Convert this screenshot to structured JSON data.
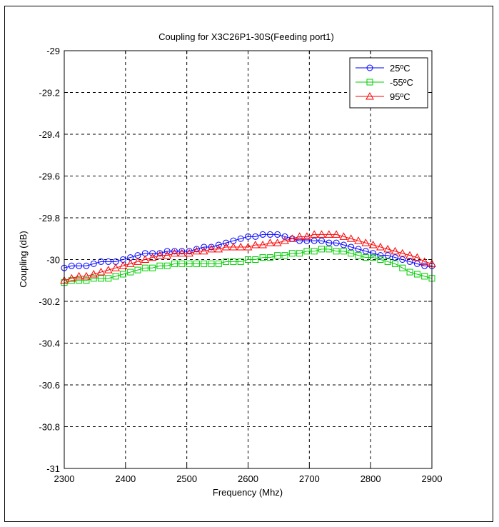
{
  "chart_data": {
    "type": "line",
    "title": "Coupling for X3C26P1-30S(Feeding port1)",
    "xlabel": "Frequency (Mhz)",
    "ylabel": "Coupling (dB)",
    "xlim": [
      2300,
      2900
    ],
    "ylim": [
      -31,
      -29
    ],
    "xticks": [
      2300,
      2400,
      2500,
      2600,
      2700,
      2800,
      2900
    ],
    "yticks": [
      -31,
      -30.8,
      -30.6,
      -30.4,
      -30.2,
      -30,
      -29.8,
      -29.6,
      -29.4,
      -29.2,
      -29
    ],
    "xtick_labels": [
      "2300",
      "2400",
      "2500",
      "2600",
      "2700",
      "2800",
      "2900"
    ],
    "ytick_labels": [
      "-31",
      "-30.8",
      "-30.6",
      "-30.4",
      "-30.2",
      "-30",
      "-29.8",
      "-29.6",
      "-29.4",
      "-29.2",
      "-29"
    ],
    "grid": true,
    "legend_position": "top-right",
    "series": [
      {
        "name": "25ºC",
        "color": "#0000ff",
        "marker": "circle",
        "x": [
          2300,
          2312,
          2324,
          2336,
          2348,
          2360,
          2372,
          2384,
          2396,
          2408,
          2420,
          2432,
          2444,
          2456,
          2468,
          2480,
          2492,
          2504,
          2516,
          2528,
          2540,
          2552,
          2564,
          2576,
          2588,
          2600,
          2612,
          2624,
          2636,
          2648,
          2660,
          2672,
          2684,
          2696,
          2708,
          2720,
          2732,
          2744,
          2756,
          2768,
          2780,
          2792,
          2804,
          2816,
          2828,
          2840,
          2852,
          2864,
          2876,
          2888,
          2900
        ],
        "y": [
          -30.04,
          -30.03,
          -30.03,
          -30.03,
          -30.02,
          -30.01,
          -30.01,
          -30.01,
          -30.0,
          -29.99,
          -29.98,
          -29.97,
          -29.97,
          -29.97,
          -29.96,
          -29.96,
          -29.96,
          -29.96,
          -29.95,
          -29.94,
          -29.94,
          -29.93,
          -29.92,
          -29.91,
          -29.9,
          -29.89,
          -29.89,
          -29.88,
          -29.88,
          -29.88,
          -29.89,
          -29.9,
          -29.91,
          -29.91,
          -29.91,
          -29.91,
          -29.92,
          -29.92,
          -29.93,
          -29.94,
          -29.95,
          -29.96,
          -29.97,
          -29.98,
          -29.98,
          -29.99,
          -30.0,
          -30.01,
          -30.02,
          -30.03,
          -30.03
        ]
      },
      {
        "name": "-55ºC",
        "color": "#00cc00",
        "marker": "square",
        "x": [
          2300,
          2312,
          2324,
          2336,
          2348,
          2360,
          2372,
          2384,
          2396,
          2408,
          2420,
          2432,
          2444,
          2456,
          2468,
          2480,
          2492,
          2504,
          2516,
          2528,
          2540,
          2552,
          2564,
          2576,
          2588,
          2600,
          2612,
          2624,
          2636,
          2648,
          2660,
          2672,
          2684,
          2696,
          2708,
          2720,
          2732,
          2744,
          2756,
          2768,
          2780,
          2792,
          2804,
          2816,
          2828,
          2840,
          2852,
          2864,
          2876,
          2888,
          2900
        ],
        "y": [
          -30.11,
          -30.1,
          -30.1,
          -30.1,
          -30.09,
          -30.09,
          -30.09,
          -30.08,
          -30.07,
          -30.06,
          -30.05,
          -30.04,
          -30.04,
          -30.03,
          -30.03,
          -30.02,
          -30.02,
          -30.02,
          -30.02,
          -30.02,
          -30.02,
          -30.02,
          -30.01,
          -30.01,
          -30.01,
          -30.0,
          -30.0,
          -29.99,
          -29.99,
          -29.98,
          -29.98,
          -29.97,
          -29.97,
          -29.96,
          -29.96,
          -29.95,
          -29.95,
          -29.96,
          -29.96,
          -29.97,
          -29.98,
          -29.99,
          -29.99,
          -30.0,
          -30.01,
          -30.02,
          -30.04,
          -30.06,
          -30.07,
          -30.08,
          -30.09
        ]
      },
      {
        "name": "95ºC",
        "color": "#ff0000",
        "marker": "triangle",
        "x": [
          2300,
          2312,
          2324,
          2336,
          2348,
          2360,
          2372,
          2384,
          2396,
          2408,
          2420,
          2432,
          2444,
          2456,
          2468,
          2480,
          2492,
          2504,
          2516,
          2528,
          2540,
          2552,
          2564,
          2576,
          2588,
          2600,
          2612,
          2624,
          2636,
          2648,
          2660,
          2672,
          2684,
          2696,
          2708,
          2720,
          2732,
          2744,
          2756,
          2768,
          2780,
          2792,
          2804,
          2816,
          2828,
          2840,
          2852,
          2864,
          2876,
          2888,
          2900
        ],
        "y": [
          -30.1,
          -30.09,
          -30.08,
          -30.08,
          -30.07,
          -30.06,
          -30.05,
          -30.04,
          -30.03,
          -30.02,
          -30.01,
          -30.0,
          -29.99,
          -29.98,
          -29.98,
          -29.97,
          -29.97,
          -29.97,
          -29.96,
          -29.96,
          -29.95,
          -29.95,
          -29.94,
          -29.94,
          -29.94,
          -29.94,
          -29.93,
          -29.93,
          -29.92,
          -29.92,
          -29.91,
          -29.9,
          -29.89,
          -29.89,
          -29.88,
          -29.88,
          -29.88,
          -29.88,
          -29.89,
          -29.9,
          -29.91,
          -29.92,
          -29.93,
          -29.94,
          -29.95,
          -29.96,
          -29.97,
          -29.98,
          -29.99,
          -30.01,
          -30.02
        ]
      }
    ]
  }
}
